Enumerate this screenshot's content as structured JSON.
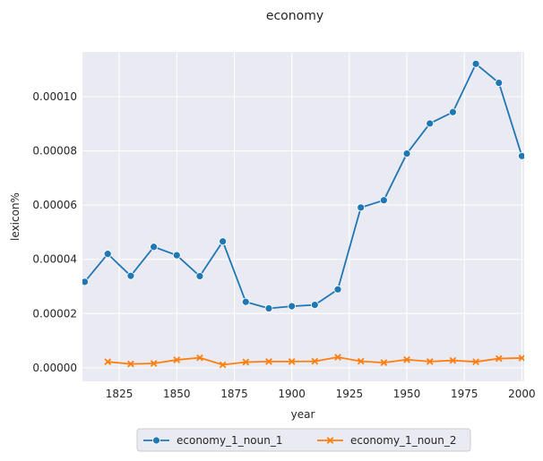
{
  "chart_data": {
    "type": "line",
    "title": "economy",
    "xlabel": "year",
    "ylabel": "lexicon%",
    "xlim": [
      1809,
      2001
    ],
    "ylim": [
      -5e-06,
      0.0001165
    ],
    "x_ticks": [
      1825,
      1850,
      1875,
      1900,
      1925,
      1950,
      1975,
      2000
    ],
    "x_tick_labels": [
      "1825",
      "1850",
      "1875",
      "1900",
      "1925",
      "1950",
      "1975",
      "2000"
    ],
    "y_ticks": [
      0,
      2e-05,
      4e-05,
      6e-05,
      8e-05,
      0.0001
    ],
    "y_tick_labels": [
      "0.00000",
      "0.00002",
      "0.00004",
      "0.00006",
      "0.00008",
      "0.00010"
    ],
    "grid": true,
    "legend_position": "bottom-center",
    "series": [
      {
        "name": "economy_1_noun_1",
        "color": "#1f77b4",
        "marker": "circle",
        "x": [
          1810,
          1820,
          1830,
          1840,
          1850,
          1860,
          1870,
          1880,
          1890,
          1900,
          1910,
          1920,
          1930,
          1940,
          1950,
          1960,
          1970,
          1980,
          1990,
          2000
        ],
        "y": [
          3.17e-05,
          4.2e-05,
          3.39e-05,
          4.46e-05,
          4.15e-05,
          3.38e-05,
          4.66e-05,
          2.43e-05,
          2.19e-05,
          2.27e-05,
          2.32e-05,
          2.89e-05,
          5.91e-05,
          6.18e-05,
          7.9e-05,
          9.01e-05,
          9.43e-05,
          0.0001121,
          0.0001051,
          7.81e-05
        ]
      },
      {
        "name": "economy_1_noun_2",
        "color": "#ff7f0e",
        "marker": "x",
        "x": [
          1820,
          1830,
          1840,
          1850,
          1860,
          1870,
          1880,
          1890,
          1900,
          1910,
          1920,
          1930,
          1940,
          1950,
          1960,
          1970,
          1980,
          1990,
          2000
        ],
        "y": [
          2.2e-06,
          1.4e-06,
          1.6e-06,
          2.9e-06,
          3.7e-06,
          1.1e-06,
          2.1e-06,
          2.3e-06,
          2.3e-06,
          2.4e-06,
          3.9e-06,
          2.4e-06,
          1.9e-06,
          3e-06,
          2.3e-06,
          2.7e-06,
          2.2e-06,
          3.4e-06,
          3.6e-06
        ]
      }
    ]
  }
}
